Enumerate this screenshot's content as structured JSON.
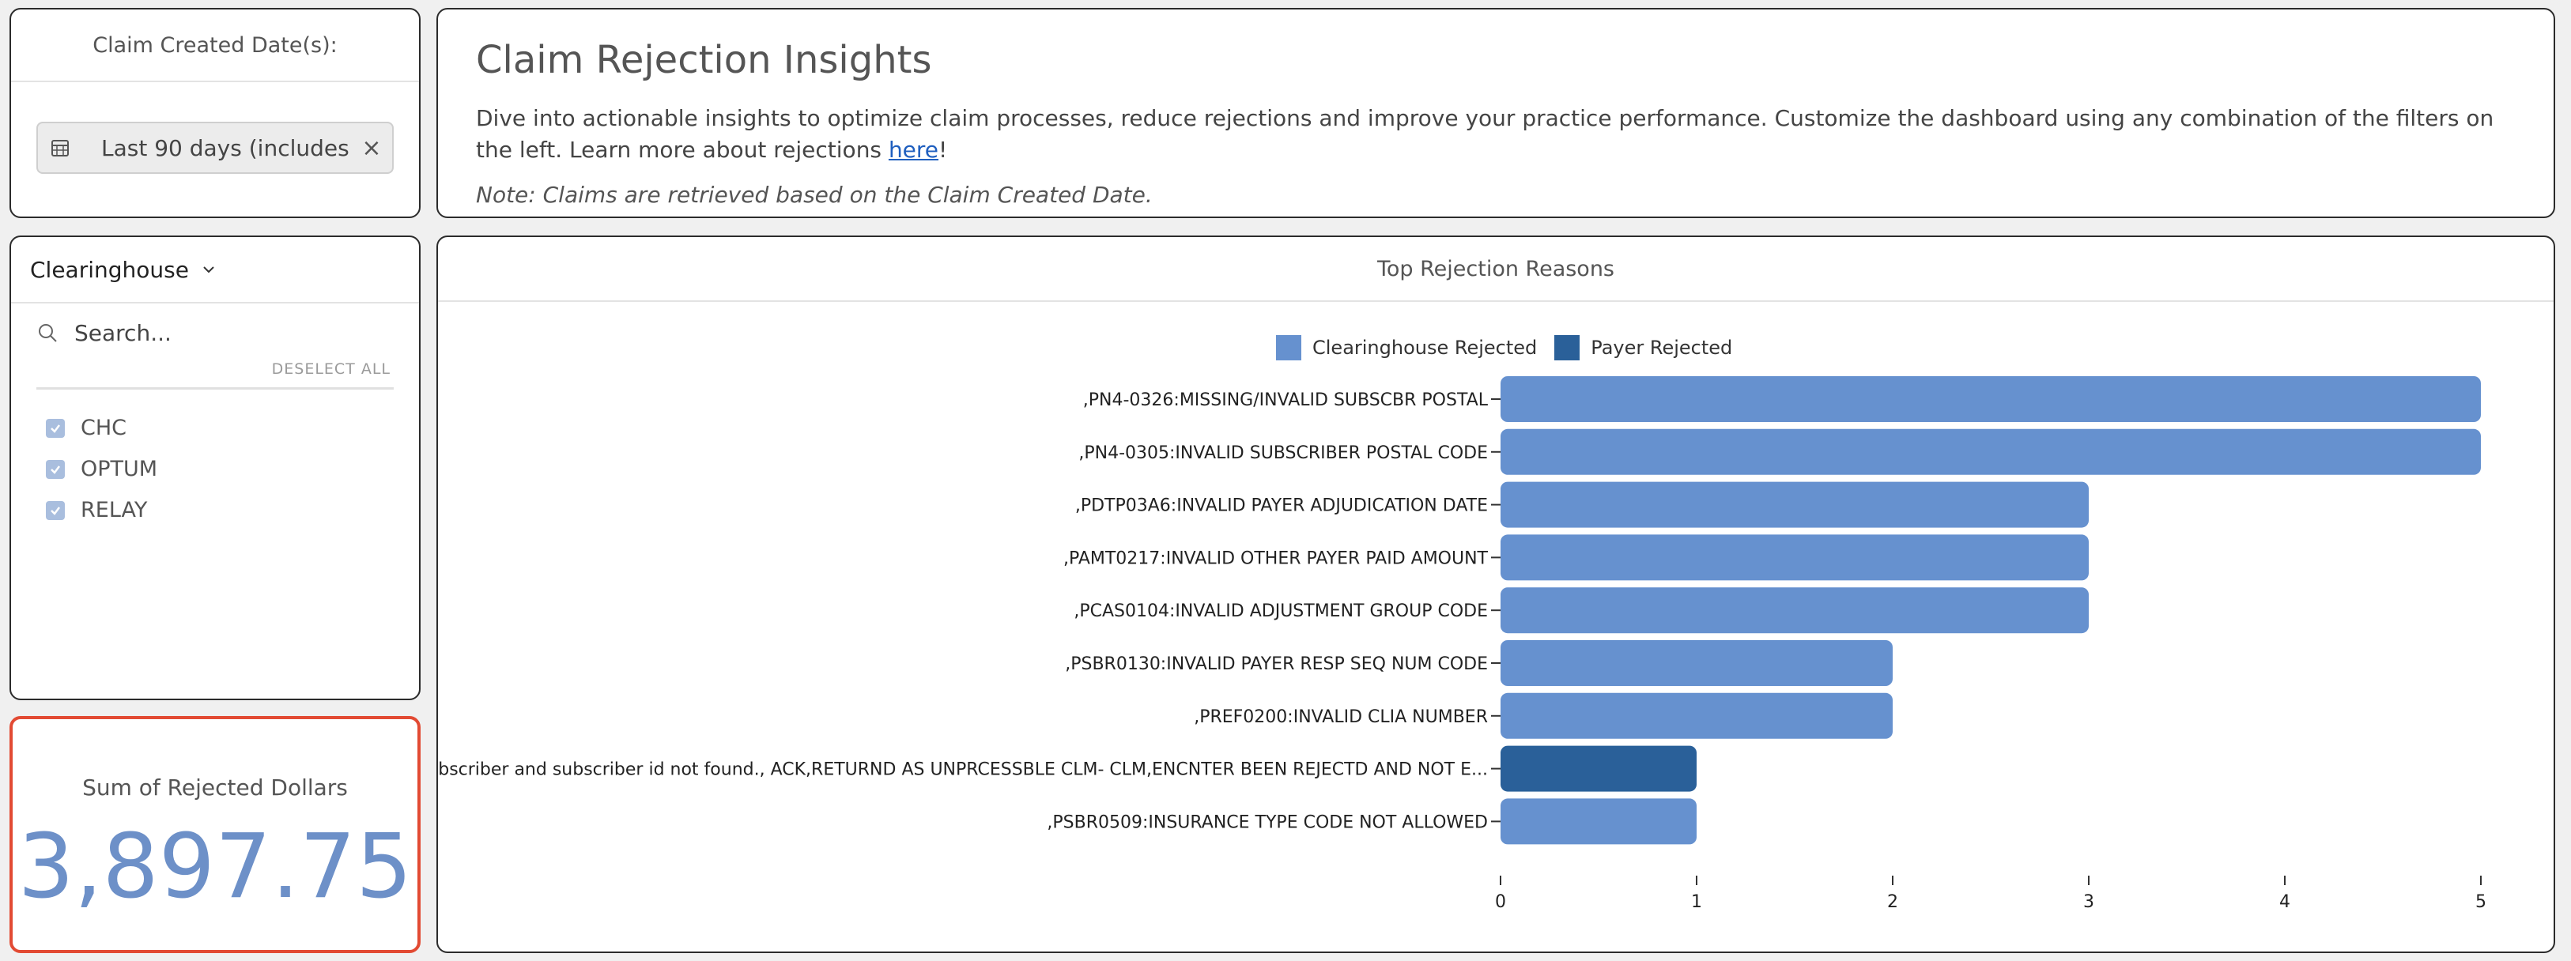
{
  "date_filter": {
    "title": "Claim Created Date(s):",
    "value": "Last 90 days (includes ...",
    "clear_icon": "close-icon",
    "calendar_icon": "calendar-icon"
  },
  "clearinghouse": {
    "title": "Clearinghouse",
    "search_placeholder": "Search...",
    "deselect_label": "DESELECT ALL",
    "options": [
      {
        "label": "CHC",
        "checked": true
      },
      {
        "label": "OPTUM",
        "checked": true
      },
      {
        "label": "RELAY",
        "checked": true
      }
    ]
  },
  "sum": {
    "title": "Sum of Rejected Dollars",
    "value": "3,897.75"
  },
  "insights": {
    "title": "Claim Rejection Insights",
    "description": "Dive into actionable insights to optimize claim processes, reduce rejections and improve your practice performance. Customize the dashboard using any combination of the filters on the left. Learn more about rejections ",
    "link_text": "here",
    "description_end": "!",
    "note": "Note: Claims are retrieved based on the Claim Created Date."
  },
  "chart_data": {
    "type": "bar",
    "orientation": "horizontal",
    "title": "Top Rejection Reasons",
    "legend_placement": "top-center",
    "legend": [
      {
        "name": "Clearinghouse Rejected",
        "color": "#6691cf"
      },
      {
        "name": "Payer Rejected",
        "color": "#2a6099"
      }
    ],
    "categories": [
      ",PN4-0326:MISSING/INVALID SUBSCBR POSTAL",
      ",PN4-0305:INVALID SUBSCRIBER POSTAL CODE",
      ",PDTP03A6:INVALID PAYER ADJUDICATION DATE",
      ",PAMT0217:INVALID OTHER PAYER PAID AMOUNT",
      ",PCAS0104:INVALID ADJUSTMENT GROUP CODE",
      ",PSBR0130:INVALID PAYER RESP SEQ NUM CODE",
      ",PREF0200:INVALID CLIA NUMBER",
      "Subscriber and subscriber id not found., ACK,RETURND AS UNPRCESSBLE CLM- CLM,ENCNTER BEEN REJECTD AND NOT E...",
      ",PSBR0509:INSURANCE TYPE CODE NOT ALLOWED"
    ],
    "values": [
      5,
      5,
      3,
      3,
      3,
      2,
      2,
      1,
      1
    ],
    "series_of_bar": [
      "Clearinghouse Rejected",
      "Clearinghouse Rejected",
      "Clearinghouse Rejected",
      "Clearinghouse Rejected",
      "Clearinghouse Rejected",
      "Clearinghouse Rejected",
      "Clearinghouse Rejected",
      "Payer Rejected",
      "Clearinghouse Rejected"
    ],
    "xlim": [
      0,
      5
    ],
    "x_ticks": [
      "0",
      "1",
      "2",
      "3",
      "4",
      "5"
    ],
    "grid": false
  }
}
